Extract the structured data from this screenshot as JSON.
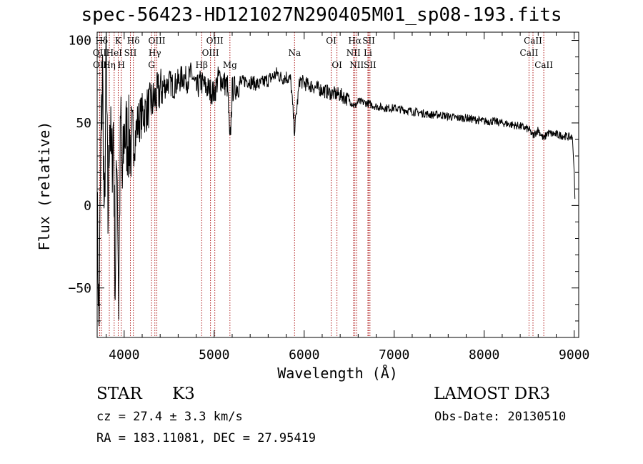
{
  "chart_data": {
    "type": "line",
    "title": "spec-56423-HD121027N290405M01_sp08-193.fits",
    "xlabel": "Wavelength (Å)",
    "ylabel": "Flux (relative)",
    "xlim": [
      3700,
      9050
    ],
    "ylim": [
      -80,
      105
    ],
    "xticks": [
      4000,
      5000,
      6000,
      7000,
      8000,
      9000
    ],
    "yticks": [
      -50,
      0,
      50,
      100
    ],
    "grid": false,
    "series": [
      {
        "name": "flux",
        "x": [
          3700,
          3720,
          3740,
          3760,
          3780,
          3800,
          3820,
          3840,
          3860,
          3880,
          3900,
          3920,
          3940,
          3960,
          3980,
          4000,
          4050,
          4100,
          4150,
          4200,
          4250,
          4300,
          4350,
          4400,
          4450,
          4500,
          4550,
          4600,
          4650,
          4700,
          4750,
          4800,
          4850,
          4900,
          4950,
          5000,
          5050,
          5100,
          5150,
          5175,
          5200,
          5250,
          5300,
          5350,
          5400,
          5450,
          5500,
          5550,
          5600,
          5650,
          5700,
          5750,
          5800,
          5850,
          5893,
          5950,
          6000,
          6100,
          6200,
          6300,
          6400,
          6500,
          6563,
          6600,
          6700,
          6800,
          6900,
          7000,
          7100,
          7200,
          7300,
          7400,
          7500,
          7600,
          7700,
          7800,
          7900,
          8000,
          8100,
          8200,
          8300,
          8400,
          8500,
          8542,
          8600,
          8662,
          8700,
          8800,
          8900,
          8980,
          9000,
          9010
        ],
        "y": [
          0,
          -75,
          30,
          80,
          -20,
          95,
          -10,
          60,
          20,
          50,
          -50,
          40,
          -60,
          55,
          10,
          45,
          40,
          35,
          50,
          55,
          58,
          62,
          65,
          70,
          72,
          75,
          72,
          75,
          78,
          76,
          80,
          70,
          75,
          72,
          70,
          68,
          78,
          75,
          72,
          35,
          70,
          72,
          74,
          76,
          75,
          74,
          73,
          75,
          76,
          78,
          80,
          77,
          78,
          76,
          45,
          76,
          74,
          72,
          70,
          68,
          67,
          64,
          60,
          63,
          62,
          60,
          59,
          59,
          58,
          57,
          56,
          55,
          55,
          54,
          53,
          53,
          52,
          51,
          51,
          50,
          49,
          48,
          46,
          42,
          46,
          40,
          44,
          43,
          42,
          41,
          20,
          0
        ]
      }
    ],
    "line_labels": [
      {
        "name": "Hδ",
        "wavelength": 3750,
        "row": 1
      },
      {
        "name": "K",
        "wavelength": 3934,
        "row": 1
      },
      {
        "name": "Hδ",
        "wavelength": 4102,
        "row": 1
      },
      {
        "name": "OIII",
        "wavelength": 4363,
        "row": 1
      },
      {
        "name": "OIII",
        "wavelength": 5007,
        "row": 1
      },
      {
        "name": "OI",
        "wavelength": 6300,
        "row": 1
      },
      {
        "name": "Hα",
        "wavelength": 6563,
        "row": 1
      },
      {
        "name": "SII",
        "wavelength": 6717,
        "row": 1
      },
      {
        "name": "CaII",
        "wavelength": 8542,
        "row": 1
      },
      {
        "name": "OII",
        "wavelength": 3727,
        "row": 2
      },
      {
        "name": "HeI",
        "wavelength": 3889,
        "row": 2
      },
      {
        "name": "SII",
        "wavelength": 4069,
        "row": 2
      },
      {
        "name": "Hγ",
        "wavelength": 4341,
        "row": 2
      },
      {
        "name": "OIII",
        "wavelength": 4959,
        "row": 2
      },
      {
        "name": "Na",
        "wavelength": 5893,
        "row": 2
      },
      {
        "name": "NII",
        "wavelength": 6548,
        "row": 2
      },
      {
        "name": "Li",
        "wavelength": 6708,
        "row": 2
      },
      {
        "name": "CaII",
        "wavelength": 8498,
        "row": 2
      },
      {
        "name": "OII",
        "wavelength": 3729,
        "row": 3
      },
      {
        "name": "Hη",
        "wavelength": 3835,
        "row": 3
      },
      {
        "name": "H",
        "wavelength": 3968,
        "row": 3
      },
      {
        "name": "G",
        "wavelength": 4304,
        "row": 3
      },
      {
        "name": "Hβ",
        "wavelength": 4861,
        "row": 3
      },
      {
        "name": "Mg",
        "wavelength": 5175,
        "row": 3
      },
      {
        "name": "OI",
        "wavelength": 6364,
        "row": 3
      },
      {
        "name": "NII",
        "wavelength": 6583,
        "row": 3
      },
      {
        "name": "SII",
        "wavelength": 6731,
        "row": 3
      },
      {
        "name": "CaII",
        "wavelength": 8662,
        "row": 3
      }
    ],
    "annotations": {
      "object_class": "STAR",
      "subclass": "K3",
      "survey": "LAMOST DR3",
      "redshift": "cz = 27.4 ± 3.3 km/s",
      "obs_date": "Obs-Date: 20130510",
      "coordinates": "RA = 183.11081, DEC =  27.95419"
    },
    "colors": {
      "spectrum": "#000000",
      "line_marker": "#b22222",
      "axes": "#000000"
    }
  }
}
